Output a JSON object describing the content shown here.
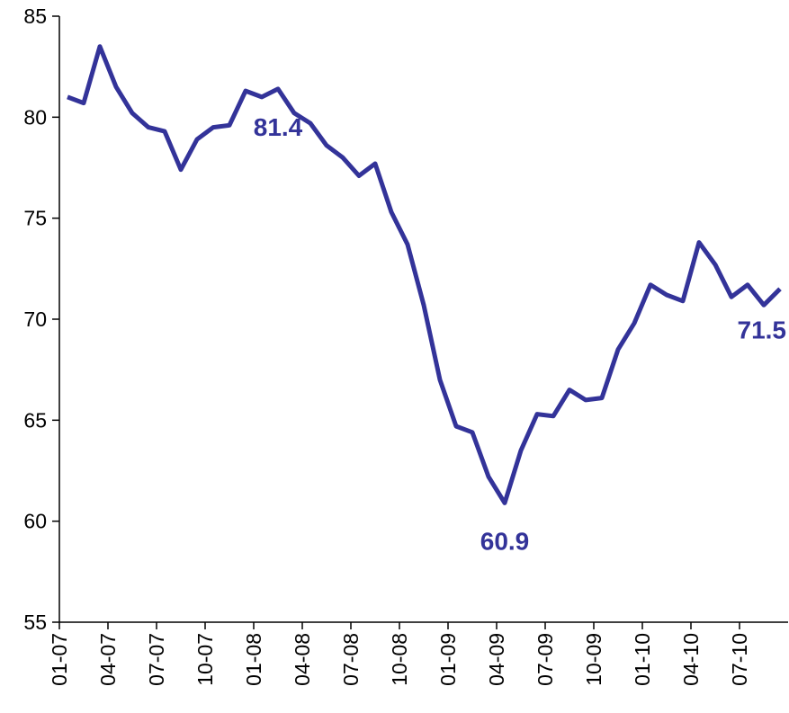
{
  "chart_data": {
    "type": "line",
    "categories": [
      "01-07",
      null,
      null,
      "04-07",
      null,
      null,
      "07-07",
      null,
      null,
      "10-07",
      null,
      null,
      "01-08",
      null,
      null,
      "04-08",
      null,
      null,
      "07-08",
      null,
      null,
      "10-08",
      null,
      null,
      "01-09",
      null,
      null,
      "04-09",
      null,
      null,
      "07-09",
      null,
      null,
      "10-09",
      null,
      null,
      "01-10",
      null,
      null,
      "04-10",
      null,
      null,
      "07-10",
      null,
      null
    ],
    "series": [
      {
        "color": "#333399",
        "values": [
          81.0,
          80.7,
          83.5,
          81.5,
          80.2,
          79.5,
          79.3,
          77.4,
          78.9,
          79.5,
          79.6,
          81.3,
          81.0,
          81.4,
          80.2,
          79.7,
          78.6,
          78.0,
          77.1,
          77.7,
          75.3,
          73.7,
          70.7,
          67.0,
          64.7,
          64.4,
          62.2,
          60.9,
          63.5,
          65.3,
          65.2,
          66.5,
          66.0,
          66.1,
          68.5,
          69.8,
          71.7,
          71.2,
          70.9,
          73.8,
          72.7,
          71.1,
          71.7,
          70.7,
          71.5
        ],
        "value_labels": [
          null,
          null,
          null,
          null,
          null,
          null,
          null,
          null,
          null,
          null,
          null,
          null,
          null,
          "81.4",
          null,
          null,
          null,
          null,
          null,
          null,
          null,
          null,
          null,
          null,
          null,
          null,
          null,
          "60.9",
          null,
          null,
          null,
          null,
          null,
          null,
          null,
          null,
          null,
          null,
          null,
          null,
          null,
          null,
          null,
          null,
          "71.5"
        ]
      }
    ],
    "ylim": [
      55,
      85
    ],
    "yticks": [
      55,
      60,
      65,
      70,
      75,
      80,
      85
    ]
  }
}
